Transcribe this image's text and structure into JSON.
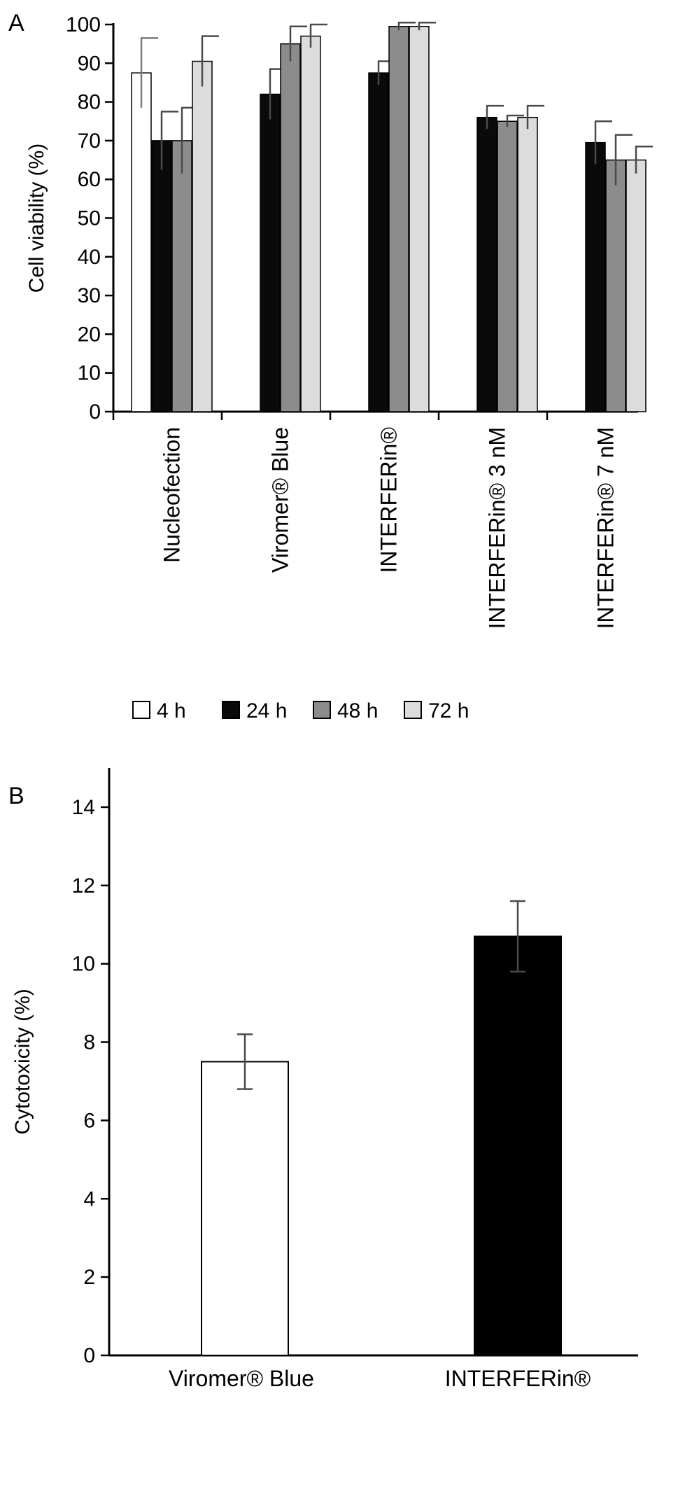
{
  "chart_data": [
    {
      "panel": "A",
      "type": "bar",
      "ylabel": "Cell viability (%)",
      "ylim": [
        0,
        100
      ],
      "yticks": [
        0,
        10,
        20,
        30,
        40,
        50,
        60,
        70,
        80,
        90,
        100
      ],
      "grid": false,
      "legend_position": "bottom",
      "categories": [
        "Nucleofection",
        "Viromer® Blue",
        "INTERFERin®",
        "INTERFERin® 3 nM",
        "INTERFERin® 7 nM"
      ],
      "series": [
        {
          "name": "4 h",
          "color": "#ffffff",
          "error_color": "#7a7a7a",
          "values": [
            87.5,
            null,
            null,
            null,
            null
          ],
          "errors": [
            9,
            null,
            null,
            null,
            null
          ]
        },
        {
          "name": "24 h",
          "color": "#0a0a0a",
          "error_color": "#4a4a4a",
          "values": [
            70,
            82,
            87.5,
            76,
            69.5
          ],
          "errors": [
            7.5,
            6.5,
            3,
            3,
            5.5
          ]
        },
        {
          "name": "48 h",
          "color": "#8c8c8c",
          "error_color": "#4a4a4a",
          "values": [
            70,
            95,
            99.5,
            75,
            65
          ],
          "errors": [
            8.5,
            4.5,
            1,
            1.5,
            6.5
          ]
        },
        {
          "name": "72 h",
          "color": "#dcdcdc",
          "error_color": "#4a4a4a",
          "values": [
            90.5,
            97,
            99.5,
            76,
            65
          ],
          "errors": [
            6.5,
            3,
            1,
            3,
            3.5
          ]
        }
      ]
    },
    {
      "panel": "B",
      "type": "bar",
      "ylabel": "Cytotoxicity (%)",
      "ylim": [
        0,
        15
      ],
      "yticks": [
        0,
        2,
        4,
        6,
        8,
        10,
        12,
        14
      ],
      "grid": false,
      "categories": [
        "Viromer® Blue",
        "INTERFERin®"
      ],
      "colors": [
        "#ffffff",
        "#000000"
      ],
      "error_color": "#4a4a4a",
      "values": [
        7.5,
        10.7
      ],
      "errors": [
        0.7,
        0.9
      ]
    }
  ]
}
